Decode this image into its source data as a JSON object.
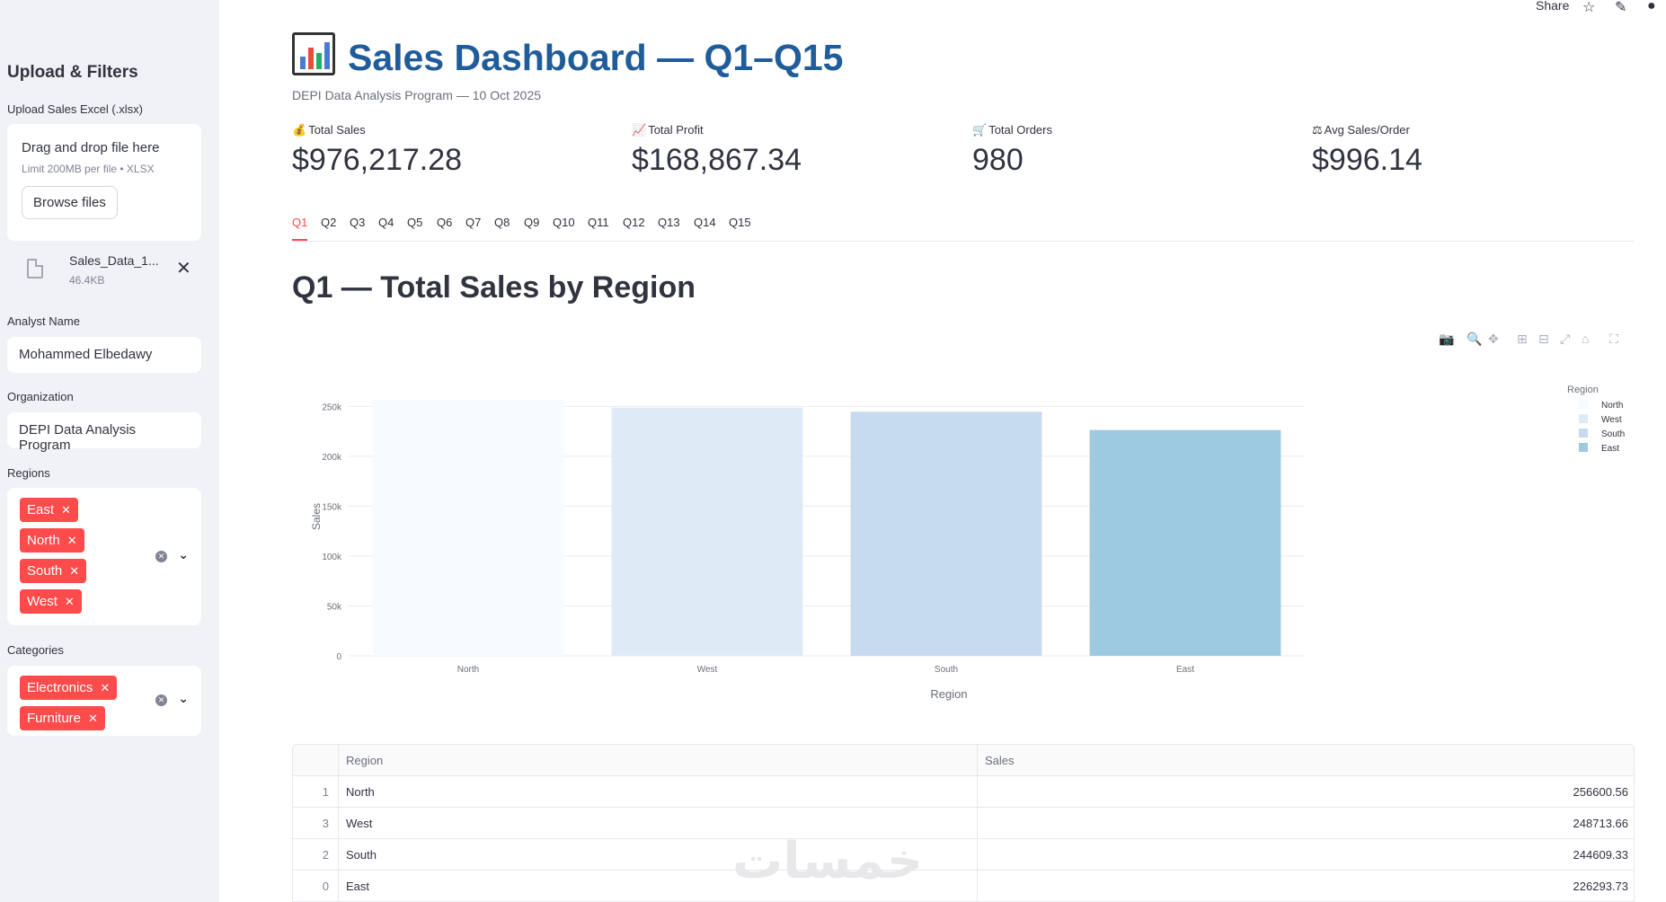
{
  "sidebar": {
    "title": "Upload & Filters",
    "upload": {
      "label": "Upload Sales Excel (.xlsx)",
      "drag_text": "Drag and drop file here",
      "limit_text": "Limit 200MB per file • XLSX",
      "browse_label": "Browse files",
      "file_name": "Sales_Data_1...",
      "file_size": "46.4KB"
    },
    "analyst": {
      "label": "Analyst Name",
      "value": "Mohammed Elbedawy"
    },
    "organization": {
      "label": "Organization",
      "value": "DEPI Data Analysis Program"
    },
    "regions": {
      "label": "Regions",
      "selected": [
        "East",
        "North",
        "South",
        "West"
      ]
    },
    "categories": {
      "label": "Categories",
      "selected": [
        "Electronics",
        "Furniture"
      ]
    }
  },
  "topbar": {
    "share_label": "Share"
  },
  "header": {
    "title": "Sales Dashboard — Q1–Q15",
    "subtitle": "DEPI Data Analysis Program — 10 Oct 2025"
  },
  "metrics": [
    {
      "icon": "money-bag-icon",
      "emoji": "💰",
      "label": "Total Sales",
      "value": "$976,217.28"
    },
    {
      "icon": "chart-up-icon",
      "emoji": "📈",
      "label": "Total Profit",
      "value": "$168,867.34"
    },
    {
      "icon": "cart-icon",
      "emoji": "🛒",
      "label": "Total Orders",
      "value": "980"
    },
    {
      "icon": "scale-icon",
      "emoji": "⚖",
      "label": "Avg Sales/Order",
      "value": "$996.14"
    }
  ],
  "tabs": [
    "Q1",
    "Q2",
    "Q3",
    "Q4",
    "Q5",
    "Q6",
    "Q7",
    "Q8",
    "Q9",
    "Q10",
    "Q11",
    "Q12",
    "Q13",
    "Q14",
    "Q15"
  ],
  "active_tab": "Q1",
  "section_title": "Q1 — Total Sales by Region",
  "chart_data": {
    "type": "bar",
    "categories": [
      "North",
      "West",
      "South",
      "East"
    ],
    "values": [
      256600.56,
      248713.66,
      244609.33,
      226293.73
    ],
    "colors": [
      "#f7fbff",
      "#deebf7",
      "#c6dbef",
      "#9ecae1"
    ],
    "title": "",
    "xlabel": "Region",
    "ylabel": "Sales",
    "ylim": [
      0,
      256600.56
    ],
    "yticks": [
      0,
      50000,
      100000,
      150000,
      200000,
      250000
    ],
    "ytick_labels": [
      "0",
      "50k",
      "100k",
      "150k",
      "200k",
      "250k"
    ],
    "grid": true,
    "legend": {
      "title": "Region",
      "placement": "right",
      "entries": [
        "North",
        "West",
        "South",
        "East"
      ]
    }
  },
  "table": {
    "columns": [
      "",
      "Region",
      "Sales"
    ],
    "rows": [
      {
        "index": "1",
        "region": "North",
        "sales": "256600.56"
      },
      {
        "index": "3",
        "region": "West",
        "sales": "248713.66"
      },
      {
        "index": "2",
        "region": "South",
        "sales": "244609.33"
      },
      {
        "index": "0",
        "region": "East",
        "sales": "226293.73"
      }
    ]
  }
}
